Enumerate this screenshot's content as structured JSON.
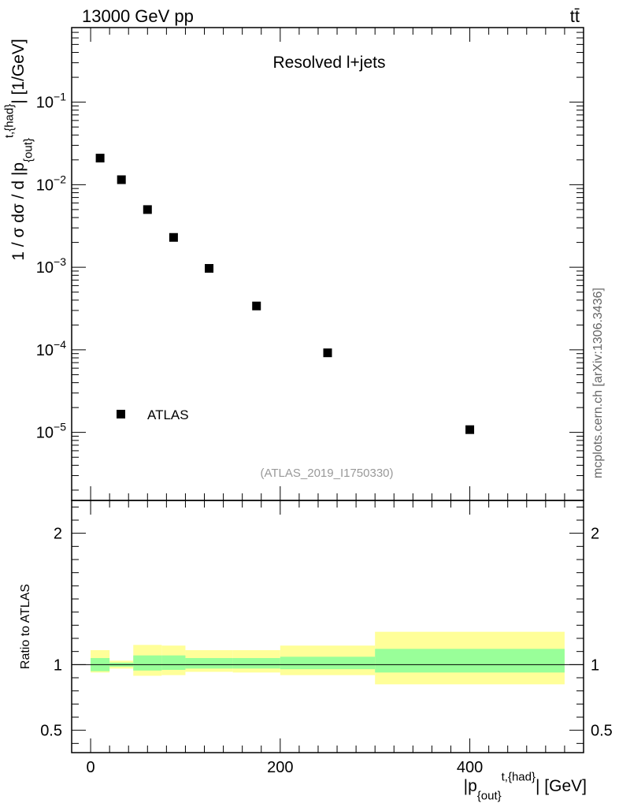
{
  "header": {
    "energy_label": "13000 GeV pp",
    "process_label": "tt̄",
    "plot_title": "Resolved l+jets",
    "analysis_id": "(ATLAS_2019_I1750330)",
    "side_credit": "mcplots.cern.ch [arXiv:1306.3436]"
  },
  "legend": {
    "entries": [
      {
        "name": "ATLAS",
        "marker": "filled-square"
      }
    ],
    "placement": "bottom-left"
  },
  "colors": {
    "yellow_band": "#ffff99",
    "green_band": "#99ff99",
    "marker": "#000000"
  },
  "chart_data": [
    {
      "type": "scatter",
      "ylabel": "1 / σ dσ / d |p{out}t,{had}| [1/GeV]",
      "y_scale": "log",
      "xlim": [
        -20,
        520
      ],
      "ylim": [
        1.5e-06,
        0.8
      ],
      "y_ticks": [
        "10^-5",
        "10^-4",
        "10^-3",
        "10^-2",
        "10^-1"
      ],
      "series": [
        {
          "name": "ATLAS",
          "x": [
            10,
            32.5,
            60,
            87.5,
            125,
            175,
            250,
            400
          ],
          "xerr": [
            10,
            12.5,
            15,
            12.5,
            25,
            25,
            50,
            100
          ],
          "y": [
            0.021,
            0.0115,
            0.005,
            0.0023,
            0.00097,
            0.00034,
            9.2e-05,
            1.08e-05
          ]
        }
      ]
    },
    {
      "type": "area",
      "ylabel": "Ratio to ATLAS",
      "xlabel": "|p{out}t,{had}| [GeV]",
      "xlim": [
        -20,
        520
      ],
      "ylim": [
        0.33,
        2.25
      ],
      "y_ticks": [
        0.5,
        1,
        2
      ],
      "x_ticks": [
        0,
        200,
        400
      ],
      "reference_line": 1,
      "bands": [
        {
          "x_lo": 0,
          "x_hi": 20,
          "green": [
            0.95,
            1.05
          ],
          "yellow": [
            0.94,
            1.11
          ]
        },
        {
          "x_lo": 20,
          "x_hi": 45,
          "green": [
            0.985,
            1.015
          ],
          "yellow": [
            0.97,
            1.03
          ]
        },
        {
          "x_lo": 45,
          "x_hi": 75,
          "green": [
            0.955,
            1.07
          ],
          "yellow": [
            0.915,
            1.15
          ]
        },
        {
          "x_lo": 75,
          "x_hi": 100,
          "green": [
            0.96,
            1.07
          ],
          "yellow": [
            0.92,
            1.145
          ]
        },
        {
          "x_lo": 100,
          "x_hi": 150,
          "green": [
            0.97,
            1.05
          ],
          "yellow": [
            0.945,
            1.11
          ]
        },
        {
          "x_lo": 150,
          "x_hi": 200,
          "green": [
            0.97,
            1.05
          ],
          "yellow": [
            0.94,
            1.11
          ]
        },
        {
          "x_lo": 200,
          "x_hi": 300,
          "green": [
            0.965,
            1.06
          ],
          "yellow": [
            0.92,
            1.145
          ]
        },
        {
          "x_lo": 300,
          "x_hi": 500,
          "green": [
            0.94,
            1.12
          ],
          "yellow": [
            0.85,
            1.25
          ]
        }
      ]
    }
  ]
}
